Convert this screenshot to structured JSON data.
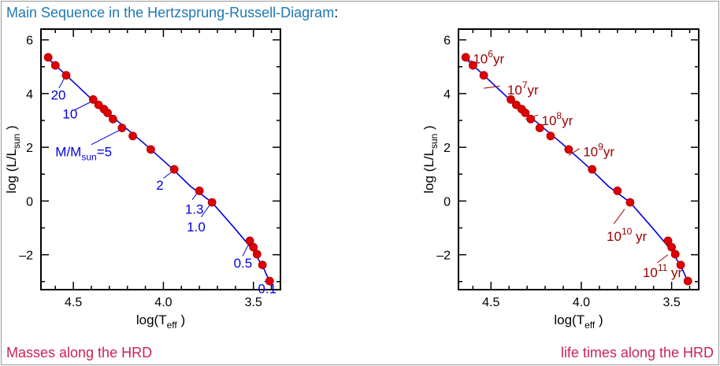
{
  "page": {
    "title": "Main Sequence in the Hertzsprung-Russell-Diagram",
    "title_suffix": ":",
    "caption_left": "Masses along the HRD",
    "caption_right": "life times along the HRD",
    "colors": {
      "title": "#1f78b4",
      "caption": "#cc2255",
      "curve": "#0000dd",
      "points": "#dd0000",
      "mass_labels": "#0000dd",
      "lifetime_labels": "#990000"
    }
  },
  "chart_data": [
    {
      "type": "scatter",
      "name": "masses",
      "xlabel": "log(T",
      "xlabel_sub": "eff",
      "xlabel_close": " )",
      "ylabel": "log (L/L",
      "ylabel_sub": "sun",
      "ylabel_close": " )",
      "xlim": [
        4.68,
        3.35
      ],
      "ylim": [
        -3.3,
        6.4
      ],
      "xticks": [
        4.5,
        4.0,
        3.5
      ],
      "xtick_labels": [
        "4.5",
        "4.0",
        "3.5"
      ],
      "yticks": [
        6,
        4,
        2,
        0,
        -2
      ],
      "ytick_labels": [
        "6",
        "4",
        "2",
        "0",
        "–2"
      ],
      "curve": [
        [
          4.66,
          5.42
        ],
        [
          4.55,
          4.75
        ],
        [
          4.4,
          3.8
        ],
        [
          4.25,
          2.95
        ],
        [
          4.1,
          2.1
        ],
        [
          3.95,
          1.2
        ],
        [
          3.85,
          0.55
        ],
        [
          3.73,
          -0.05
        ],
        [
          3.6,
          -1.05
        ],
        [
          3.5,
          -1.85
        ],
        [
          3.44,
          -2.55
        ],
        [
          3.41,
          -3.0
        ]
      ],
      "points": [
        {
          "x": 4.64,
          "y": 5.35
        },
        {
          "x": 4.6,
          "y": 5.05
        },
        {
          "x": 4.54,
          "y": 4.68
        },
        {
          "x": 4.39,
          "y": 3.78
        },
        {
          "x": 4.36,
          "y": 3.58
        },
        {
          "x": 4.33,
          "y": 3.42
        },
        {
          "x": 4.31,
          "y": 3.28
        },
        {
          "x": 4.28,
          "y": 3.05
        },
        {
          "x": 4.23,
          "y": 2.72
        },
        {
          "x": 4.17,
          "y": 2.42
        },
        {
          "x": 4.07,
          "y": 1.92
        },
        {
          "x": 3.94,
          "y": 1.18
        },
        {
          "x": 3.8,
          "y": 0.38
        },
        {
          "x": 3.73,
          "y": -0.05
        },
        {
          "x": 3.52,
          "y": -1.48
        },
        {
          "x": 3.5,
          "y": -1.72
        },
        {
          "x": 3.48,
          "y": -1.98
        },
        {
          "x": 3.45,
          "y": -2.38
        },
        {
          "x": 3.41,
          "y": -2.98
        }
      ],
      "annotations": [
        {
          "text": "20",
          "x": 4.625,
          "y": 3.95,
          "lx1": 4.58,
          "ly1": 4.2,
          "lx2": 4.55,
          "ly2": 4.58
        },
        {
          "text": "10",
          "x": 4.56,
          "y": 3.25,
          "lx1": 4.49,
          "ly1": 3.4,
          "lx2": 4.4,
          "ly2": 3.7
        },
        {
          "text": "M/M",
          "sub": "sun",
          "tail": "=5",
          "x": 4.6,
          "y": 1.85,
          "lx1": 4.4,
          "ly1": 2.1,
          "lx2": 4.24,
          "ly2": 2.65
        },
        {
          "text": "2",
          "x": 4.04,
          "y": 0.6,
          "lx1": 4.0,
          "ly1": 0.85,
          "lx2": 3.95,
          "ly2": 1.1
        },
        {
          "text": "1.3",
          "x": 3.88,
          "y": -0.3,
          "lx1": 3.84,
          "ly1": 0.05,
          "lx2": 3.81,
          "ly2": 0.32
        },
        {
          "text": "1.0",
          "x": 3.87,
          "y": -0.95,
          "lx1": 3.79,
          "ly1": -0.6,
          "lx2": 3.74,
          "ly2": -0.12
        },
        {
          "text": "0.5",
          "x": 3.61,
          "y": -2.3,
          "lx1": 3.56,
          "ly1": -2.05,
          "lx2": 3.53,
          "ly2": -1.65
        },
        {
          "text": "0.1",
          "x": 3.475,
          "y": -3.25,
          "lx1": 3.44,
          "ly1": -3.0,
          "lx2": 3.42,
          "ly2": -2.95
        }
      ]
    },
    {
      "type": "scatter",
      "name": "lifetimes",
      "xlabel": "log(T",
      "xlabel_sub": "eff",
      "xlabel_close": " )",
      "ylabel": "log (L/L",
      "ylabel_sub": "sun",
      "ylabel_close": " )",
      "xlim": [
        4.68,
        3.35
      ],
      "ylim": [
        -3.3,
        6.4
      ],
      "xticks": [
        4.5,
        4.0,
        3.5
      ],
      "xtick_labels": [
        "4.5",
        "4.0",
        "3.5"
      ],
      "yticks": [
        6,
        4,
        2,
        0,
        -2
      ],
      "ytick_labels": [
        "6",
        "4",
        "2",
        "0",
        "–2"
      ],
      "curve": [
        [
          4.66,
          5.42
        ],
        [
          4.55,
          4.75
        ],
        [
          4.4,
          3.8
        ],
        [
          4.25,
          2.95
        ],
        [
          4.1,
          2.1
        ],
        [
          3.95,
          1.2
        ],
        [
          3.85,
          0.55
        ],
        [
          3.73,
          -0.05
        ],
        [
          3.6,
          -1.05
        ],
        [
          3.5,
          -1.85
        ],
        [
          3.44,
          -2.55
        ],
        [
          3.41,
          -3.0
        ]
      ],
      "points": [
        {
          "x": 4.64,
          "y": 5.35
        },
        {
          "x": 4.6,
          "y": 5.05
        },
        {
          "x": 4.54,
          "y": 4.68
        },
        {
          "x": 4.39,
          "y": 3.78
        },
        {
          "x": 4.36,
          "y": 3.58
        },
        {
          "x": 4.33,
          "y": 3.42
        },
        {
          "x": 4.31,
          "y": 3.28
        },
        {
          "x": 4.28,
          "y": 3.05
        },
        {
          "x": 4.23,
          "y": 2.72
        },
        {
          "x": 4.17,
          "y": 2.42
        },
        {
          "x": 4.07,
          "y": 1.92
        },
        {
          "x": 3.94,
          "y": 1.18
        },
        {
          "x": 3.8,
          "y": 0.38
        },
        {
          "x": 3.73,
          "y": -0.05
        },
        {
          "x": 3.52,
          "y": -1.48
        },
        {
          "x": 3.5,
          "y": -1.72
        },
        {
          "x": 3.48,
          "y": -1.98
        },
        {
          "x": 3.45,
          "y": -2.38
        },
        {
          "x": 3.41,
          "y": -2.98
        }
      ],
      "annotations": [
        {
          "text": "10",
          "sup": "6",
          "tail": "yr",
          "x": 4.6,
          "y": 5.3,
          "lx1": 4.6,
          "ly1": 5.2,
          "lx2": 4.63,
          "ly2": 5.25
        },
        {
          "text": "10",
          "sup": "7",
          "tail": "yr",
          "x": 4.41,
          "y": 4.15,
          "lx1": 4.45,
          "ly1": 4.28,
          "lx2": 4.54,
          "ly2": 4.2
        },
        {
          "text": "10",
          "sup": "8",
          "tail": "yr",
          "x": 4.22,
          "y": 3.0,
          "lx1": 4.24,
          "ly1": 3.2,
          "lx2": 4.31,
          "ly2": 3.05
        },
        {
          "text": "10",
          "sup": "9",
          "tail": "yr",
          "x": 3.99,
          "y": 1.85,
          "lx1": 4.01,
          "ly1": 1.95,
          "lx2": 4.07,
          "ly2": 1.7
        },
        {
          "text": "10",
          "sup": "10",
          "tail": " yr",
          "x": 3.86,
          "y": -1.3,
          "lx1": 3.82,
          "ly1": -0.85,
          "lx2": 3.76,
          "ly2": -0.3
        },
        {
          "text": "10",
          "sup": "11",
          "tail": " yr",
          "x": 3.66,
          "y": -2.65,
          "lx1": 3.58,
          "ly1": -2.3,
          "lx2": 3.52,
          "ly2": -2.0
        }
      ]
    }
  ]
}
